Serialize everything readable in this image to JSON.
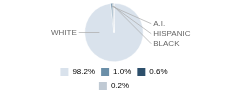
{
  "chart_data": {
    "type": "pie",
    "categories": [
      "WHITE",
      "A.I.",
      "HISPANIC",
      "BLACK"
    ],
    "values": [
      98.2,
      1.0,
      0.6,
      0.2
    ],
    "value_labels": [
      "98.2%",
      "1.0%",
      "0.6%",
      "0.2%"
    ],
    "colors": [
      "#d9e2ec",
      "#6b8fa8",
      "#2d4f6b",
      "#c0cad4"
    ],
    "legend": "bottom"
  }
}
